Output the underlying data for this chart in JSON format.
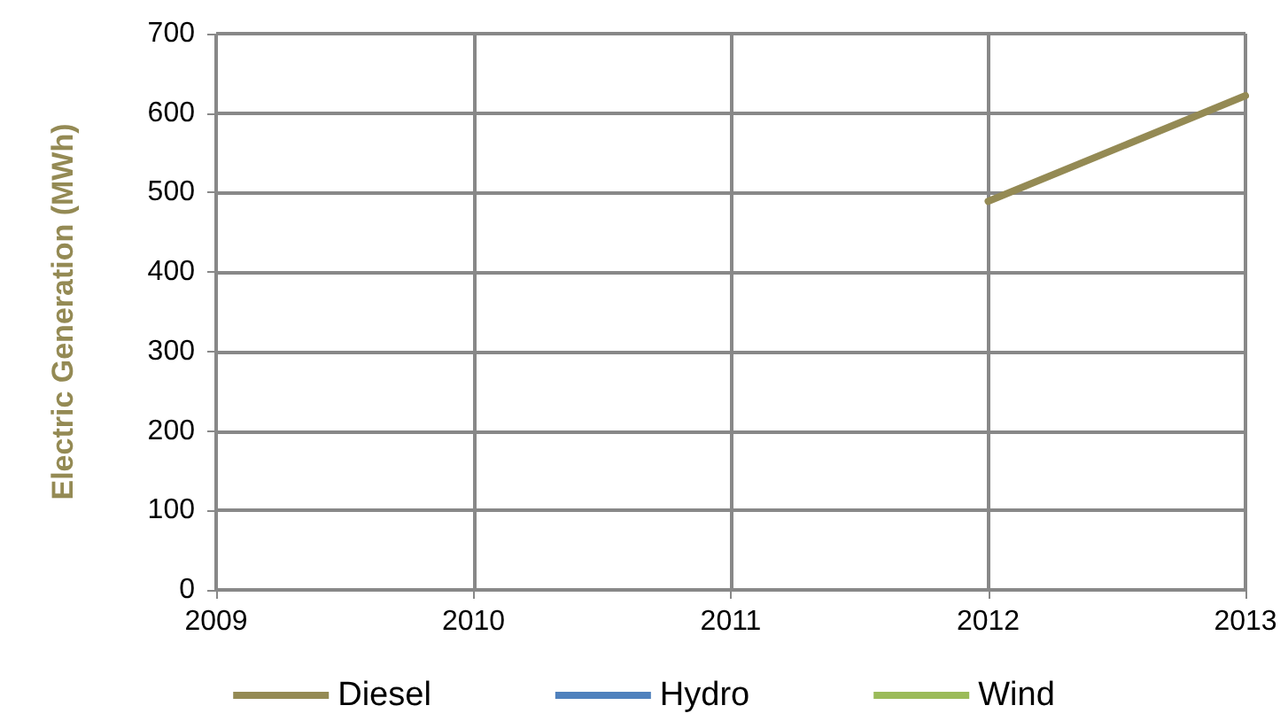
{
  "chart_data": {
    "type": "line",
    "ylabel": "Electric Generation (MWh)",
    "series": [
      {
        "name": "Diesel",
        "color": "#948a54",
        "x": [
          2012,
          2013
        ],
        "values": [
          489,
          622
        ]
      },
      {
        "name": "Hydro",
        "color": "#4f81bd"
      },
      {
        "name": "Wind",
        "color": "#9bbb59"
      }
    ],
    "xlim": [
      2009,
      2013
    ],
    "xticks": [
      2009,
      2010,
      2011,
      2012,
      2013
    ],
    "ylim": [
      0,
      700
    ],
    "yticks": [
      0,
      100,
      200,
      300,
      400,
      500,
      600,
      700
    ],
    "grid": true,
    "legend": "bottom",
    "marker": "none",
    "line_style": "solid"
  }
}
